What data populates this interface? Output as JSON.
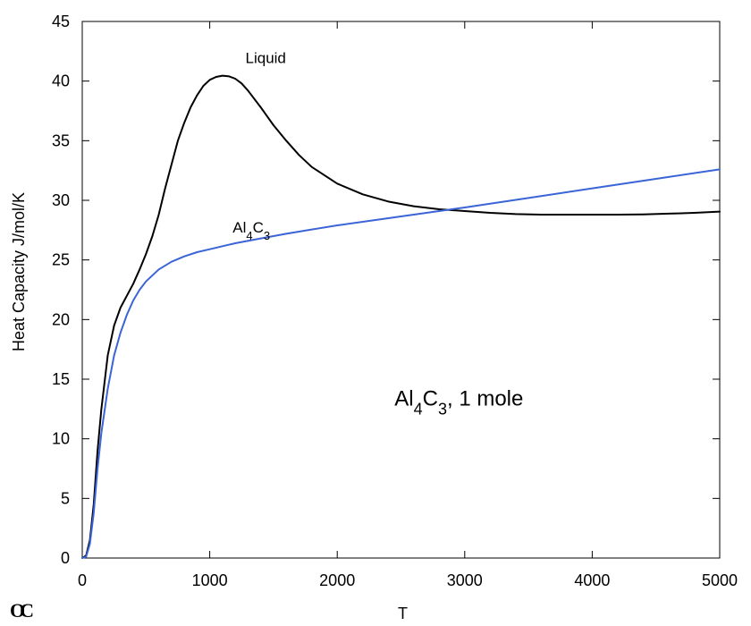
{
  "chart_data": {
    "type": "line",
    "xlabel": "T",
    "ylabel": "Heat Capacity J/mol/K",
    "xlim": [
      0,
      5000
    ],
    "ylim": [
      0,
      45
    ],
    "xticks": [
      0,
      1000,
      2000,
      3000,
      4000,
      5000
    ],
    "yticks": [
      0,
      5,
      10,
      15,
      20,
      25,
      30,
      35,
      40,
      45
    ],
    "grid": false,
    "annotation": {
      "parts": [
        {
          "text": "Al",
          "sub": false
        },
        {
          "text": "4",
          "sub": true
        },
        {
          "text": "C",
          "sub": false
        },
        {
          "text": "3",
          "sub": true
        },
        {
          "text": ", 1 mole",
          "sub": false
        }
      ],
      "x": 2800,
      "y": 12.8
    },
    "series": [
      {
        "name": "Liquid",
        "color": "#000000",
        "label": {
          "parts": [
            {
              "text": "Liquid",
              "sub": false
            }
          ],
          "x": 1280,
          "y": 41.5
        },
        "points": [
          [
            0,
            0
          ],
          [
            30,
            0.2
          ],
          [
            60,
            1.5
          ],
          [
            90,
            4.5
          ],
          [
            120,
            9
          ],
          [
            150,
            12.5
          ],
          [
            200,
            17
          ],
          [
            250,
            19.5
          ],
          [
            300,
            21
          ],
          [
            350,
            22
          ],
          [
            400,
            23
          ],
          [
            450,
            24.2
          ],
          [
            500,
            25.5
          ],
          [
            550,
            27
          ],
          [
            600,
            28.8
          ],
          [
            650,
            31
          ],
          [
            700,
            33
          ],
          [
            750,
            35
          ],
          [
            800,
            36.5
          ],
          [
            850,
            37.8
          ],
          [
            900,
            38.8
          ],
          [
            950,
            39.6
          ],
          [
            1000,
            40.1
          ],
          [
            1050,
            40.35
          ],
          [
            1100,
            40.45
          ],
          [
            1150,
            40.4
          ],
          [
            1200,
            40.2
          ],
          [
            1250,
            39.8
          ],
          [
            1300,
            39.2
          ],
          [
            1400,
            37.8
          ],
          [
            1500,
            36.3
          ],
          [
            1600,
            35
          ],
          [
            1700,
            33.8
          ],
          [
            1800,
            32.8
          ],
          [
            2000,
            31.4
          ],
          [
            2200,
            30.5
          ],
          [
            2400,
            29.9
          ],
          [
            2600,
            29.5
          ],
          [
            2800,
            29.25
          ],
          [
            3000,
            29.1
          ],
          [
            3200,
            28.95
          ],
          [
            3400,
            28.85
          ],
          [
            3600,
            28.8
          ],
          [
            3800,
            28.8
          ],
          [
            4000,
            28.8
          ],
          [
            4200,
            28.8
          ],
          [
            4400,
            28.82
          ],
          [
            4600,
            28.88
          ],
          [
            4800,
            28.95
          ],
          [
            5000,
            29.05
          ]
        ]
      },
      {
        "name": "Al4C3",
        "color": "#3b64d6",
        "label": {
          "parts": [
            {
              "text": "Al",
              "sub": false
            },
            {
              "text": "4",
              "sub": true
            },
            {
              "text": "C",
              "sub": false
            },
            {
              "text": "3",
              "sub": true
            }
          ],
          "x": 1180,
          "y": 27.3
        },
        "points": [
          [
            0,
            0
          ],
          [
            30,
            0.1
          ],
          [
            60,
            1.2
          ],
          [
            90,
            3.8
          ],
          [
            120,
            7.5
          ],
          [
            150,
            10.5
          ],
          [
            200,
            14.2
          ],
          [
            250,
            17
          ],
          [
            300,
            18.9
          ],
          [
            350,
            20.4
          ],
          [
            400,
            21.6
          ],
          [
            450,
            22.5
          ],
          [
            500,
            23.2
          ],
          [
            600,
            24.2
          ],
          [
            700,
            24.85
          ],
          [
            800,
            25.3
          ],
          [
            900,
            25.65
          ],
          [
            1000,
            25.9
          ],
          [
            1200,
            26.4
          ],
          [
            1400,
            26.8
          ],
          [
            1600,
            27.2
          ],
          [
            1800,
            27.55
          ],
          [
            2000,
            27.9
          ],
          [
            2500,
            28.65
          ],
          [
            3000,
            29.4
          ],
          [
            3500,
            30.2
          ],
          [
            4000,
            31
          ],
          [
            4500,
            31.8
          ],
          [
            5000,
            32.6
          ]
        ]
      }
    ]
  },
  "logo_text": "OC"
}
